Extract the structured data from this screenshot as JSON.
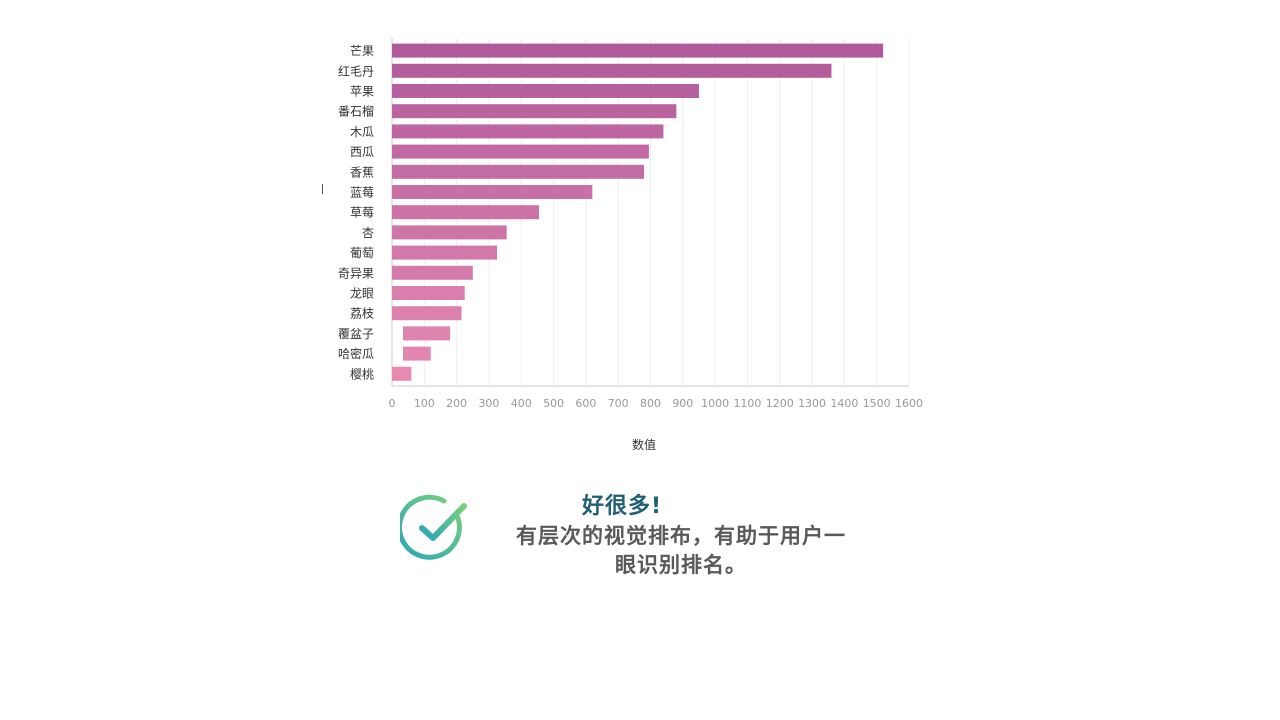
{
  "chart_data": {
    "type": "bar",
    "orientation": "horizontal",
    "categories": [
      "芒果",
      "红毛丹",
      "苹果",
      "番石榴",
      "木瓜",
      "西瓜",
      "香蕉",
      "蓝莓",
      "草莓",
      "杏",
      "葡萄",
      "奇异果",
      "龙眼",
      "荔枝",
      "覆盆子",
      "哈密瓜",
      "樱桃"
    ],
    "values": [
      1520,
      1360,
      950,
      880,
      840,
      795,
      780,
      620,
      455,
      355,
      325,
      250,
      225,
      215,
      180,
      120,
      60
    ],
    "xlabel": "数值",
    "ylabel": "",
    "xlim": [
      0,
      1600
    ],
    "xticks": [
      "0",
      "100",
      "200",
      "300",
      "400",
      "500",
      "600",
      "700",
      "800",
      "900",
      "1000",
      "1100",
      "1200",
      "1300",
      "1400",
      "1500",
      "1600"
    ],
    "grid": true,
    "colors": {
      "bar_start": "#b05a9c",
      "bar_end": "#e68ab2"
    }
  },
  "callout": {
    "title": "好很多!",
    "body_line1": "有层次的视觉排布，有助于用户一",
    "body_line2": "眼识别排名。",
    "icon": "check-circle-icon"
  }
}
